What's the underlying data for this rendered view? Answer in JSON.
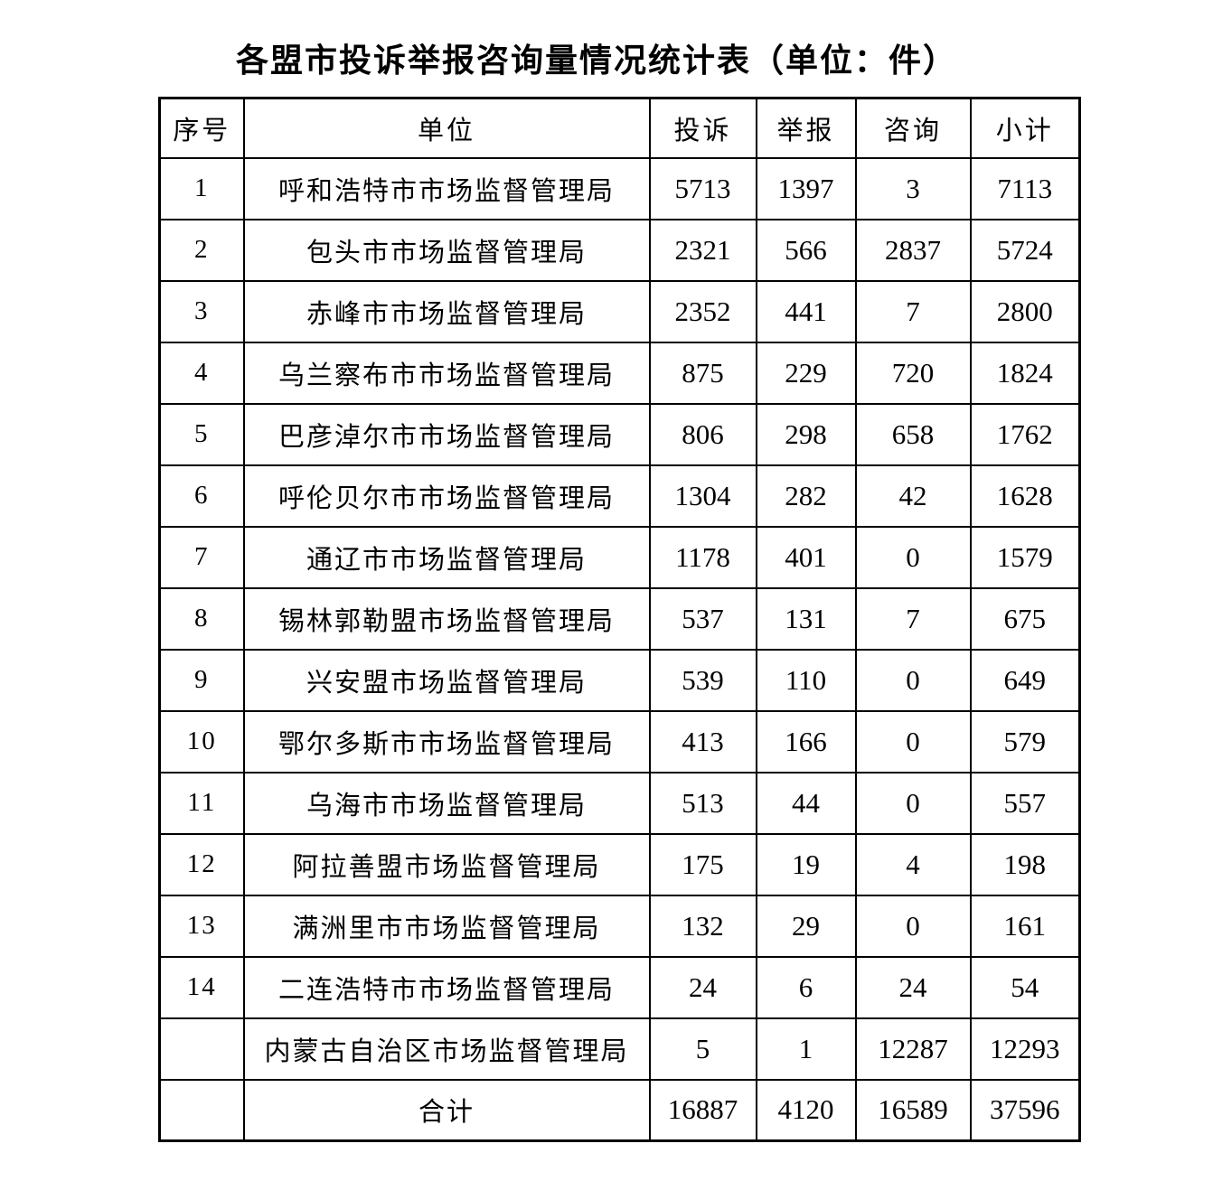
{
  "title": "各盟市投诉举报咨询量情况统计表（单位：件）",
  "table": {
    "headers": [
      "序号",
      "单位",
      "投诉",
      "举报",
      "咨询",
      "小计"
    ],
    "rows": [
      [
        "1",
        "呼和浩特市市场监督管理局",
        "5713",
        "1397",
        "3",
        "7113"
      ],
      [
        "2",
        "包头市市场监督管理局",
        "2321",
        "566",
        "2837",
        "5724"
      ],
      [
        "3",
        "赤峰市市场监督管理局",
        "2352",
        "441",
        "7",
        "2800"
      ],
      [
        "4",
        "乌兰察布市市场监督管理局",
        "875",
        "229",
        "720",
        "1824"
      ],
      [
        "5",
        "巴彦淖尔市市场监督管理局",
        "806",
        "298",
        "658",
        "1762"
      ],
      [
        "6",
        "呼伦贝尔市市场监督管理局",
        "1304",
        "282",
        "42",
        "1628"
      ],
      [
        "7",
        "通辽市市场监督管理局",
        "1178",
        "401",
        "0",
        "1579"
      ],
      [
        "8",
        "锡林郭勒盟市场监督管理局",
        "537",
        "131",
        "7",
        "675"
      ],
      [
        "9",
        "兴安盟市场监督管理局",
        "539",
        "110",
        "0",
        "649"
      ],
      [
        "10",
        "鄂尔多斯市市场监督管理局",
        "413",
        "166",
        "0",
        "579"
      ],
      [
        "11",
        "乌海市市场监督管理局",
        "513",
        "44",
        "0",
        "557"
      ],
      [
        "12",
        "阿拉善盟市场监督管理局",
        "175",
        "19",
        "4",
        "198"
      ],
      [
        "13",
        "满洲里市市场监督管理局",
        "132",
        "29",
        "0",
        "161"
      ],
      [
        "14",
        "二连浩特市市场监督管理局",
        "24",
        "6",
        "24",
        "54"
      ],
      [
        "",
        "内蒙古自治区市场监督管理局",
        "5",
        "1",
        "12287",
        "12293"
      ],
      [
        "",
        "合计",
        "16887",
        "4120",
        "16589",
        "37596"
      ]
    ]
  },
  "colors": {
    "background": "#ffffff",
    "border": "#000000",
    "text": "#000000"
  }
}
